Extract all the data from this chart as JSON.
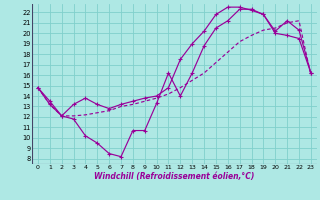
{
  "xlabel": "Windchill (Refroidissement éolien,°C)",
  "bg_color": "#aee8e4",
  "grid_color": "#80d0cc",
  "line_color": "#990099",
  "xlim": [
    -0.5,
    23.5
  ],
  "ylim": [
    7.5,
    22.8
  ],
  "xticks": [
    0,
    1,
    2,
    3,
    4,
    5,
    6,
    7,
    8,
    9,
    10,
    11,
    12,
    13,
    14,
    15,
    16,
    17,
    18,
    19,
    20,
    21,
    22,
    23
  ],
  "yticks": [
    8,
    9,
    10,
    11,
    12,
    13,
    14,
    15,
    16,
    17,
    18,
    19,
    20,
    21,
    22
  ],
  "line1_x": [
    0,
    1,
    2,
    3,
    4,
    5,
    6,
    7,
    8,
    9,
    10,
    11,
    12,
    13,
    14,
    15,
    16,
    17,
    18,
    19,
    20,
    21,
    22,
    23
  ],
  "line1_y": [
    14.8,
    13.5,
    12.1,
    11.8,
    10.2,
    9.5,
    8.5,
    8.2,
    10.7,
    10.7,
    13.3,
    16.2,
    14.0,
    16.2,
    18.8,
    20.5,
    21.2,
    22.3,
    22.3,
    21.8,
    20.2,
    21.2,
    20.3,
    16.2
  ],
  "line2_x": [
    0,
    1,
    2,
    3,
    4,
    5,
    6,
    7,
    8,
    9,
    10,
    11,
    12,
    13,
    14,
    15,
    16,
    17,
    18,
    19,
    20,
    21,
    22,
    23
  ],
  "line2_y": [
    14.8,
    13.2,
    12.1,
    13.2,
    13.8,
    13.2,
    12.8,
    13.2,
    13.5,
    13.8,
    14.0,
    14.8,
    17.5,
    19.0,
    20.2,
    21.8,
    22.5,
    22.5,
    22.2,
    21.8,
    20.0,
    19.8,
    19.5,
    16.2
  ],
  "line3_x": [
    0,
    1,
    2,
    3,
    4,
    5,
    6,
    7,
    8,
    9,
    10,
    11,
    12,
    13,
    14,
    15,
    16,
    17,
    18,
    19,
    20,
    21,
    22,
    23
  ],
  "line3_y": [
    14.8,
    13.2,
    12.1,
    12.1,
    12.2,
    12.4,
    12.6,
    13.0,
    13.2,
    13.5,
    13.8,
    14.2,
    14.8,
    15.5,
    16.2,
    17.2,
    18.2,
    19.2,
    19.8,
    20.3,
    20.5,
    21.0,
    21.2,
    16.0
  ]
}
